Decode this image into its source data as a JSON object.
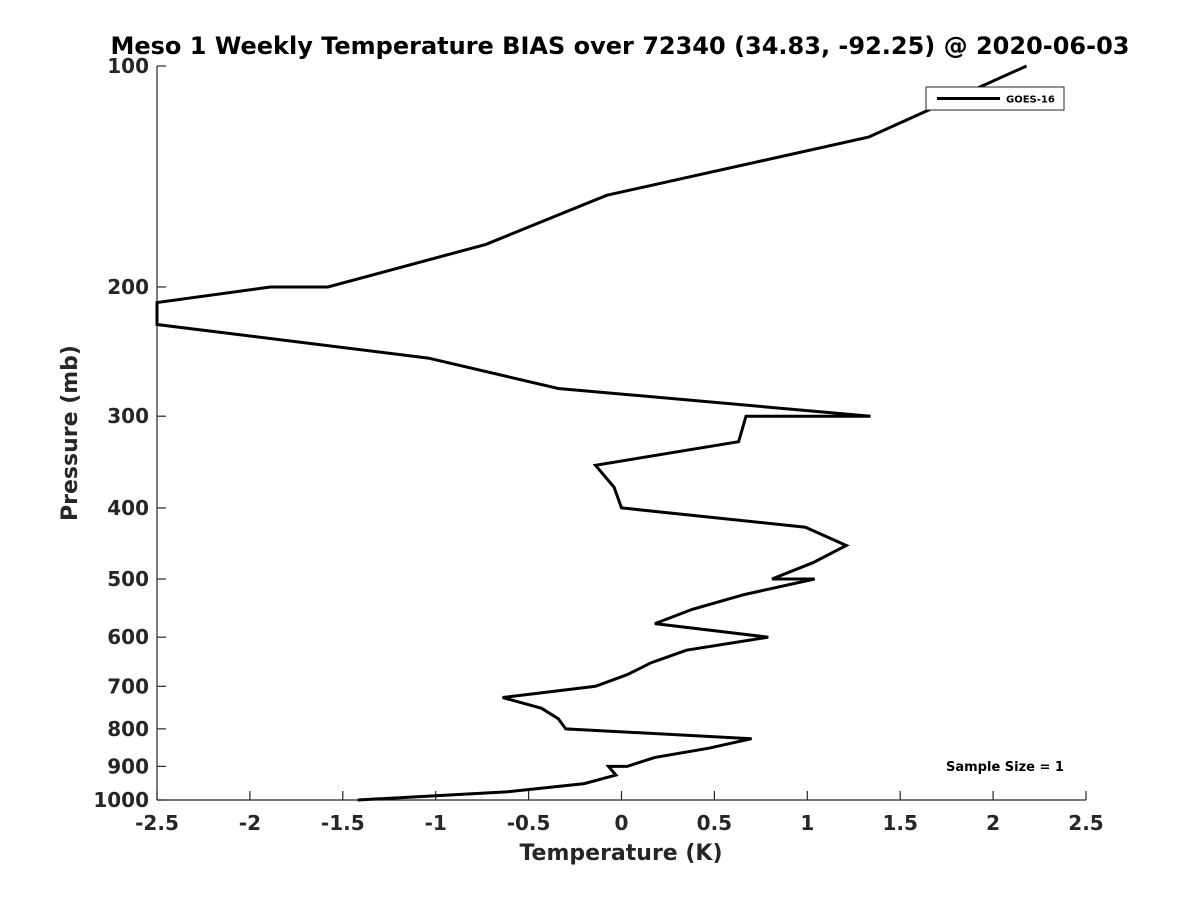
{
  "chart_data": {
    "type": "line",
    "title": "Meso 1 Weekly Temperature BIAS over 72340 (34.83, -92.25) @ 2020-06-03",
    "xlabel": "Temperature (K)",
    "ylabel": "Pressure (mb)",
    "xlim": [
      -2.5,
      2.5
    ],
    "ylim": [
      100,
      1000
    ],
    "y_scale": "log",
    "y_reversed": true,
    "x_ticks": [
      -2.5,
      -2,
      -1.5,
      -1,
      -0.5,
      0,
      0.5,
      1,
      1.5,
      2,
      2.5
    ],
    "x_tick_labels": [
      "-2.5",
      "-2",
      "-1.5",
      "-1",
      "-0.5",
      "0",
      "0.5",
      "1",
      "1.5",
      "2",
      "2.5"
    ],
    "y_ticks": [
      100,
      200,
      300,
      400,
      500,
      600,
      700,
      800,
      900,
      1000
    ],
    "y_tick_labels": [
      "100",
      "200",
      "300",
      "400",
      "500",
      "600",
      "700",
      "800",
      "900",
      "1000"
    ],
    "grid": false,
    "legend_position": "top-right",
    "annotation": "Sample Size = 1",
    "series": [
      {
        "name": "GOES-16",
        "color": "#000000",
        "points": [
          [
            2.18,
            100
          ],
          [
            1.33,
            125
          ],
          [
            -0.08,
            150
          ],
          [
            -0.73,
            175
          ],
          [
            -1.58,
            200
          ],
          [
            -1.89,
            200
          ],
          [
            -2.5,
            210
          ],
          [
            -2.5,
            225
          ],
          [
            -1.04,
            250
          ],
          [
            -0.34,
            275
          ],
          [
            1.34,
            300
          ],
          [
            0.67,
            300
          ],
          [
            0.63,
            325
          ],
          [
            -0.14,
            350
          ],
          [
            -0.04,
            375
          ],
          [
            0.0,
            400
          ],
          [
            0.99,
            425
          ],
          [
            1.21,
            450
          ],
          [
            1.03,
            475
          ],
          [
            0.81,
            500
          ],
          [
            1.04,
            500
          ],
          [
            0.66,
            525
          ],
          [
            0.38,
            550
          ],
          [
            0.18,
            575
          ],
          [
            0.79,
            600
          ],
          [
            0.35,
            625
          ],
          [
            0.16,
            650
          ],
          [
            0.03,
            675
          ],
          [
            -0.14,
            700
          ],
          [
            -0.64,
            725
          ],
          [
            -0.43,
            750
          ],
          [
            -0.34,
            775
          ],
          [
            -0.3,
            800
          ],
          [
            0.7,
            825
          ],
          [
            0.47,
            850
          ],
          [
            0.18,
            875
          ],
          [
            0.03,
            900
          ],
          [
            -0.07,
            900
          ],
          [
            -0.03,
            925
          ],
          [
            -0.2,
            950
          ],
          [
            -0.62,
            975
          ],
          [
            -1.42,
            1000
          ]
        ]
      }
    ]
  }
}
